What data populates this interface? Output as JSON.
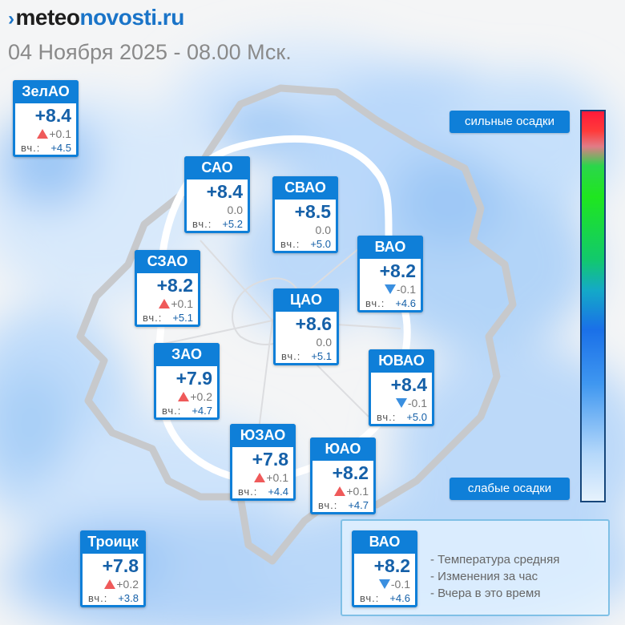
{
  "brand": {
    "part1": "meteo",
    "part2": "novosti.ru"
  },
  "datetime": "04 Ноября 2025 - 08.00 Мск.",
  "colors": {
    "card_blue": "#0f7fd8",
    "up_arrow": "#ef5a5a",
    "down_arrow": "#3a8fe0"
  },
  "yesterday_label": "вч.:",
  "districts": [
    {
      "name": "ЗелАО",
      "temp": "+8.4",
      "change": "+0.1",
      "dir": "up",
      "yesterday": "+4.5"
    },
    {
      "name": "САО",
      "temp": "+8.4",
      "change": "0.0",
      "dir": "none",
      "yesterday": "+5.2"
    },
    {
      "name": "СВАО",
      "temp": "+8.5",
      "change": "0.0",
      "dir": "none",
      "yesterday": "+5.0"
    },
    {
      "name": "ВАО",
      "temp": "+8.2",
      "change": "-0.1",
      "dir": "down",
      "yesterday": "+4.6"
    },
    {
      "name": "СЗАО",
      "temp": "+8.2",
      "change": "+0.1",
      "dir": "up",
      "yesterday": "+5.1"
    },
    {
      "name": "ЦАО",
      "temp": "+8.6",
      "change": "0.0",
      "dir": "none",
      "yesterday": "+5.1"
    },
    {
      "name": "ЗАО",
      "temp": "+7.9",
      "change": "+0.2",
      "dir": "up",
      "yesterday": "+4.7"
    },
    {
      "name": "ЮВАО",
      "temp": "+8.4",
      "change": "-0.1",
      "dir": "down",
      "yesterday": "+5.0"
    },
    {
      "name": "ЮЗАО",
      "temp": "+7.8",
      "change": "+0.1",
      "dir": "up",
      "yesterday": "+4.4"
    },
    {
      "name": "ЮАО",
      "temp": "+8.2",
      "change": "+0.1",
      "dir": "up",
      "yesterday": "+4.7"
    },
    {
      "name": "Троицк",
      "temp": "+7.8",
      "change": "+0.2",
      "dir": "up",
      "yesterday": "+3.8"
    }
  ],
  "precip_scale": {
    "top_label": "сильные осадки",
    "bottom_label": "слабые осадки"
  },
  "legend": {
    "sample": {
      "name": "ВАО",
      "temp": "+8.2",
      "change": "-0.1",
      "dir": "down",
      "yesterday": "+4.6"
    },
    "lines": [
      "- Температура средняя",
      "- Изменения за час",
      "- Вчера в это время"
    ]
  }
}
